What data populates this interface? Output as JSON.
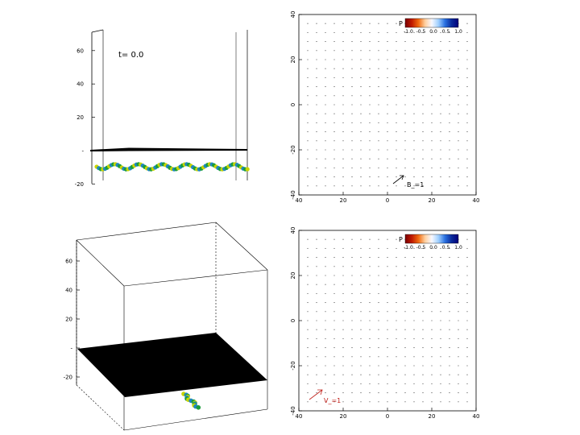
{
  "chart_data": [
    {
      "type": "3d-surface",
      "view": "side",
      "annotation": "t=   0.0",
      "z_ticks": [
        "60",
        "40",
        "20",
        "-",
        "-20"
      ],
      "z_values": [
        60,
        40,
        20,
        0,
        -20
      ],
      "zlim": [
        -20,
        70
      ],
      "wave_colors": [
        "#c8d400",
        "#1f86c4",
        "#1a9c3a"
      ]
    },
    {
      "type": "vector-field",
      "x_ticks": [
        "40",
        "20",
        "0",
        "20",
        "40"
      ],
      "y_ticks": [
        "40",
        "20",
        "0",
        "-20",
        "-40"
      ],
      "x_values": [
        -40,
        -20,
        0,
        20,
        40
      ],
      "y_values": [
        40,
        20,
        0,
        -20,
        -40
      ],
      "xlim": [
        -40,
        40
      ],
      "ylim": [
        -40,
        40
      ],
      "grid_spacing": 4,
      "colorbar": {
        "symbol": "P",
        "tick_labels": [
          "-1.0",
          "-0.5",
          "0.0",
          "0.5",
          "1.0"
        ],
        "colors": [
          "#7a0000",
          "#c01a00",
          "#f06a10",
          "#ffd0a0",
          "#f8f8ff",
          "#a0d0ff",
          "#2a70e0",
          "#0a2a9a",
          "#02007a"
        ]
      },
      "reference_arrow": {
        "label": "B_=1",
        "color": "#000000"
      }
    },
    {
      "type": "3d-surface",
      "view": "perspective",
      "z_ticks": [
        "60",
        "40",
        "20",
        "-",
        "-20"
      ],
      "z_values": [
        60,
        40,
        20,
        0,
        -20
      ],
      "zlim": [
        -20,
        70
      ],
      "wave_colors": [
        "#c8d400",
        "#1f86c4",
        "#1a9c3a"
      ]
    },
    {
      "type": "vector-field",
      "x_ticks": [
        "40",
        "20",
        "0",
        "20",
        "40"
      ],
      "y_ticks": [
        "40",
        "20",
        "0",
        "-20",
        "-40"
      ],
      "x_values": [
        -40,
        -20,
        0,
        20,
        40
      ],
      "y_values": [
        40,
        20,
        0,
        -20,
        -40
      ],
      "xlim": [
        -40,
        40
      ],
      "ylim": [
        -40,
        40
      ],
      "grid_spacing": 4,
      "colorbar": {
        "symbol": "P",
        "tick_labels": [
          "-1.0",
          "-0.5",
          "0.0",
          "0.5",
          "1.0"
        ],
        "colors": [
          "#7a0000",
          "#c01a00",
          "#f06a10",
          "#ffd0a0",
          "#f8f8ff",
          "#a0d0ff",
          "#2a70e0",
          "#0a2a9a",
          "#02007a"
        ]
      },
      "reference_arrow": {
        "label": "V_=1",
        "color": "#c0201a"
      }
    }
  ]
}
